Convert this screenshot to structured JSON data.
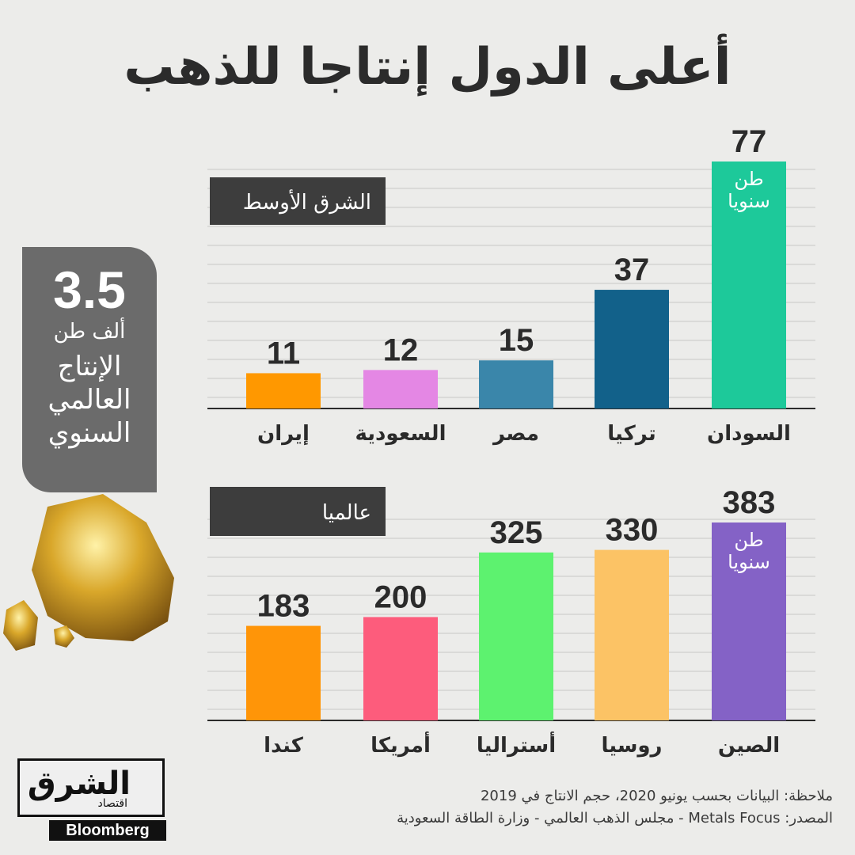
{
  "title": "أعلى الدول إنتاجا للذهب",
  "stat": {
    "value": "3.5",
    "unit": "ألف طن",
    "description": "الإنتاج العالمي السنوي"
  },
  "note": "ملاحظة: البيانات بحسب يونيو 2020، حجم الانتاج في 2019",
  "source": "المصدر: Metals Focus - مجلس الذهب العالمي - وزارة الطاقة السعودية",
  "logo": {
    "arabic": "الشرق",
    "sub": "اقتصاد",
    "bloomberg": "Bloomberg"
  },
  "chart_data": [
    {
      "type": "bar",
      "section_label": "الشرق الأوسط",
      "unit_label": "طن سنويا",
      "categories": [
        "السودان",
        "تركيا",
        "مصر",
        "السعودية",
        "إيران"
      ],
      "values": [
        77,
        37,
        15,
        12,
        11
      ],
      "colors": [
        "#1dc99a",
        "#12618a",
        "#3a86aa",
        "#e487e4",
        "#ff9800"
      ],
      "ylim": [
        0,
        77
      ]
    },
    {
      "type": "bar",
      "section_label": "عالميا",
      "unit_label": "طن سنويا",
      "categories": [
        "الصين",
        "روسيا",
        "أستراليا",
        "أمريكا",
        "كندا"
      ],
      "values": [
        383,
        330,
        325,
        200,
        183
      ],
      "colors": [
        "#8462c6",
        "#fcc365",
        "#5df26f",
        "#fd5c7c",
        "#ff9508"
      ],
      "ylim": [
        0,
        383
      ]
    }
  ]
}
